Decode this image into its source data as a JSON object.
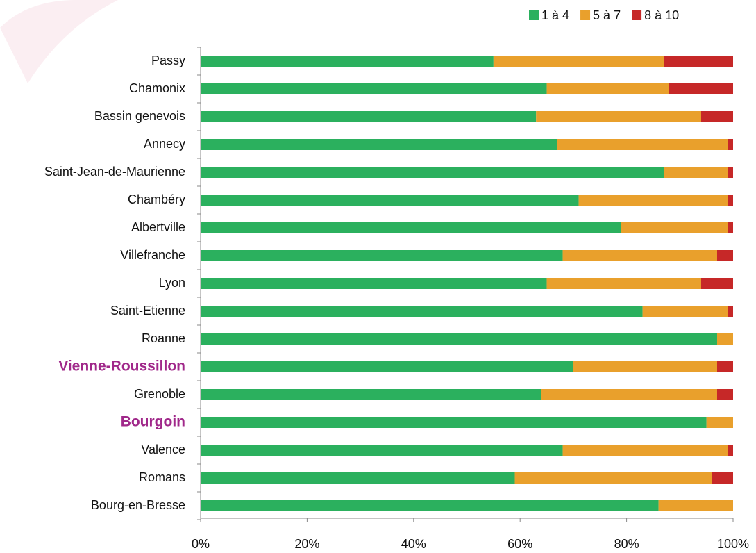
{
  "chart_data": {
    "type": "stacked-barh",
    "categories": [
      "Passy",
      "Chamonix",
      "Bassin genevois",
      "Annecy",
      "Saint-Jean-de-Maurienne",
      "Chambéry",
      "Albertville",
      "Villefranche",
      "Lyon",
      "Saint-Etienne",
      "Roanne",
      "Vienne-Roussillon",
      "Grenoble",
      "Bourgoin",
      "Valence",
      "Romans",
      "Bourg-en-Bresse"
    ],
    "highlight": [
      11,
      13
    ],
    "highlight_color": "#a0288a",
    "series": [
      {
        "name": "1 à 4",
        "color": "#2bb05e",
        "values": [
          55,
          65,
          63,
          67,
          87,
          71,
          79,
          68,
          65,
          83,
          97,
          70,
          64,
          95,
          68,
          59,
          86
        ]
      },
      {
        "name": "5 à 7",
        "color": "#e9a02c",
        "values": [
          32,
          23,
          31,
          32,
          12,
          28,
          20,
          29,
          29,
          16,
          3,
          27,
          33,
          5,
          31,
          37,
          14
        ]
      },
      {
        "name": "8 à 10",
        "color": "#c62828",
        "values": [
          13,
          12,
          6,
          1,
          1,
          1,
          1,
          3,
          6,
          1,
          0,
          3,
          3,
          0,
          1,
          4,
          0
        ]
      }
    ],
    "xlim": [
      0,
      100
    ],
    "xticks": [
      {
        "value": 0,
        "label": "0%"
      },
      {
        "value": 20,
        "label": "20%"
      },
      {
        "value": 40,
        "label": "40%"
      },
      {
        "value": 60,
        "label": "60%"
      },
      {
        "value": 80,
        "label": "80%"
      },
      {
        "value": 100,
        "label": "100%"
      }
    ],
    "legend": "top-right"
  }
}
